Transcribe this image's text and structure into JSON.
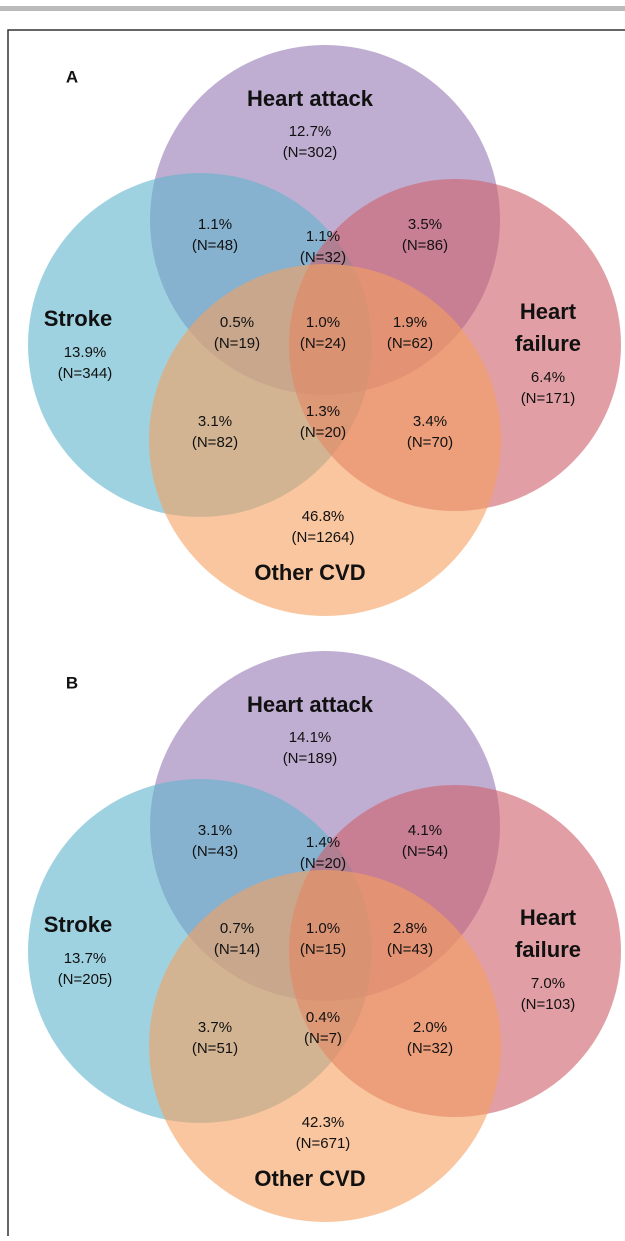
{
  "panels": [
    {
      "label": "A",
      "sets": [
        {
          "lines": [
            "Heart attack"
          ]
        },
        {
          "lines": [
            "Stroke"
          ]
        },
        {
          "lines": [
            "Heart",
            "failure"
          ]
        },
        {
          "lines": [
            "Other CVD"
          ]
        }
      ],
      "regions": [
        {
          "pct": "12.7%",
          "n": "(N=302)"
        },
        {
          "pct": "1.1%",
          "n": "(N=48)"
        },
        {
          "pct": "1.1%",
          "n": "(N=32)"
        },
        {
          "pct": "3.5%",
          "n": "(N=86)"
        },
        {
          "pct": "13.9%",
          "n": "(N=344)"
        },
        {
          "pct": "0.5%",
          "n": "(N=19)"
        },
        {
          "pct": "1.0%",
          "n": "(N=24)"
        },
        {
          "pct": "1.9%",
          "n": "(N=62)"
        },
        {
          "pct": "6.4%",
          "n": "(N=171)"
        },
        {
          "pct": "3.1%",
          "n": "(N=82)"
        },
        {
          "pct": "1.3%",
          "n": "(N=20)"
        },
        {
          "pct": "3.4%",
          "n": "(N=70)"
        },
        {
          "pct": "46.8%",
          "n": "(N=1264)"
        }
      ]
    },
    {
      "label": "B",
      "sets": [
        {
          "lines": [
            "Heart attack"
          ]
        },
        {
          "lines": [
            "Stroke"
          ]
        },
        {
          "lines": [
            "Heart",
            "failure"
          ]
        },
        {
          "lines": [
            "Other CVD"
          ]
        }
      ],
      "regions": [
        {
          "pct": "14.1%",
          "n": "(N=189)"
        },
        {
          "pct": "3.1%",
          "n": "(N=43)"
        },
        {
          "pct": "1.4%",
          "n": "(N=20)"
        },
        {
          "pct": "4.1%",
          "n": "(N=54)"
        },
        {
          "pct": "13.7%",
          "n": "(N=205)"
        },
        {
          "pct": "0.7%",
          "n": "(N=14)"
        },
        {
          "pct": "1.0%",
          "n": "(N=15)"
        },
        {
          "pct": "2.8%",
          "n": "(N=43)"
        },
        {
          "pct": "7.0%",
          "n": "(N=103)"
        },
        {
          "pct": "3.7%",
          "n": "(N=51)"
        },
        {
          "pct": "0.4%",
          "n": "(N=7)"
        },
        {
          "pct": "2.0%",
          "n": "(N=32)"
        },
        {
          "pct": "42.3%",
          "n": "(N=671)"
        }
      ]
    }
  ]
}
